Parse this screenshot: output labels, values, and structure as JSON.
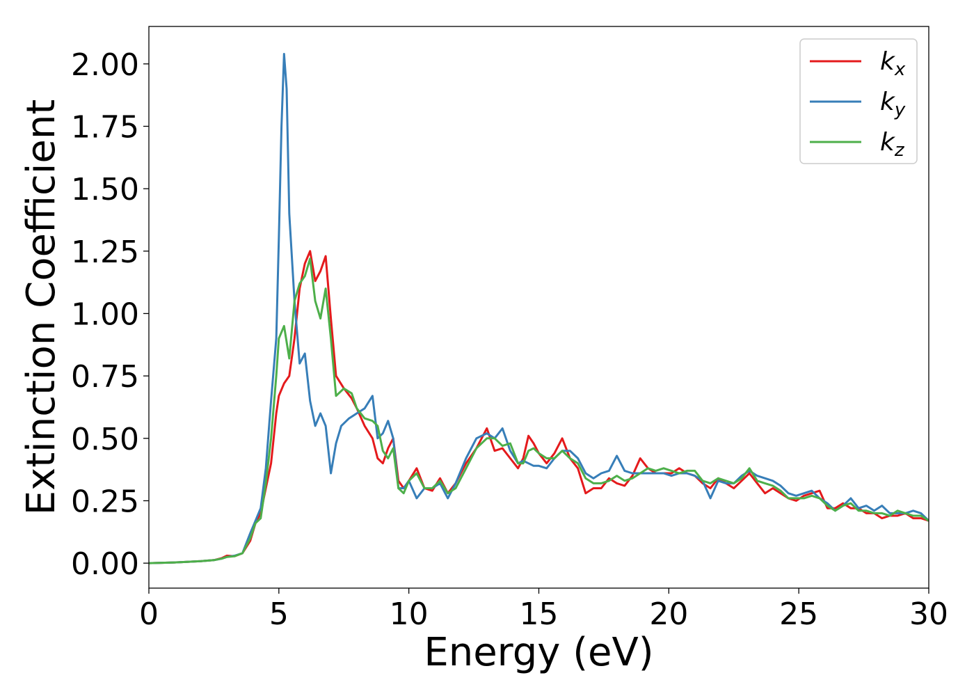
{
  "chart_data": {
    "type": "line",
    "title": "",
    "xlabel": "Energy (eV)",
    "ylabel": "Extinction Coefficient",
    "xlim": [
      0,
      30
    ],
    "ylim": [
      -0.1,
      2.15
    ],
    "xticks": [
      0,
      5,
      10,
      15,
      20,
      25,
      30
    ],
    "yticks": [
      0.0,
      0.25,
      0.5,
      0.75,
      1.0,
      1.25,
      1.5,
      1.75,
      2.0
    ],
    "ytick_labels": [
      "0.00",
      "0.25",
      "0.50",
      "0.75",
      "1.00",
      "1.25",
      "1.50",
      "1.75",
      "2.00"
    ],
    "grid": false,
    "legend_position": "top-right",
    "series": [
      {
        "name": "k",
        "subscript": "x",
        "color": "#e41a1c",
        "x": [
          0,
          1,
          2,
          2.5,
          2.8,
          3.0,
          3.3,
          3.6,
          3.9,
          4.1,
          4.3,
          4.5,
          4.7,
          4.9,
          5.0,
          5.2,
          5.4,
          5.6,
          5.8,
          6.0,
          6.2,
          6.4,
          6.6,
          6.8,
          7.0,
          7.2,
          7.5,
          7.8,
          8.0,
          8.3,
          8.6,
          8.8,
          9.0,
          9.2,
          9.4,
          9.6,
          9.8,
          10.0,
          10.3,
          10.6,
          10.9,
          11.2,
          11.5,
          11.8,
          12.2,
          12.6,
          13.0,
          13.3,
          13.6,
          13.9,
          14.2,
          14.4,
          14.6,
          14.8,
          15.0,
          15.3,
          15.6,
          15.9,
          16.2,
          16.5,
          16.8,
          17.1,
          17.4,
          17.7,
          18.0,
          18.3,
          18.6,
          18.9,
          19.2,
          19.5,
          19.8,
          20.1,
          20.4,
          20.7,
          21.0,
          21.3,
          21.6,
          21.9,
          22.2,
          22.5,
          22.8,
          23.1,
          23.4,
          23.7,
          24.0,
          24.3,
          24.6,
          24.9,
          25.2,
          25.5,
          25.8,
          26.1,
          26.4,
          26.7,
          27.0,
          27.3,
          27.6,
          27.9,
          28.2,
          28.5,
          28.8,
          29.1,
          29.4,
          29.7,
          30.0
        ],
        "y": [
          0,
          0.003,
          0.008,
          0.012,
          0.02,
          0.03,
          0.028,
          0.04,
          0.09,
          0.16,
          0.2,
          0.3,
          0.4,
          0.6,
          0.67,
          0.72,
          0.75,
          0.9,
          1.1,
          1.2,
          1.25,
          1.13,
          1.17,
          1.23,
          0.98,
          0.75,
          0.7,
          0.66,
          0.62,
          0.55,
          0.5,
          0.42,
          0.4,
          0.46,
          0.5,
          0.33,
          0.3,
          0.33,
          0.38,
          0.3,
          0.29,
          0.34,
          0.28,
          0.32,
          0.4,
          0.46,
          0.54,
          0.45,
          0.46,
          0.42,
          0.38,
          0.42,
          0.51,
          0.48,
          0.44,
          0.4,
          0.44,
          0.5,
          0.42,
          0.38,
          0.28,
          0.3,
          0.3,
          0.34,
          0.32,
          0.31,
          0.35,
          0.42,
          0.38,
          0.36,
          0.36,
          0.36,
          0.38,
          0.36,
          0.35,
          0.32,
          0.3,
          0.34,
          0.32,
          0.3,
          0.33,
          0.36,
          0.32,
          0.28,
          0.3,
          0.28,
          0.26,
          0.25,
          0.27,
          0.28,
          0.29,
          0.22,
          0.22,
          0.24,
          0.22,
          0.22,
          0.2,
          0.2,
          0.18,
          0.19,
          0.19,
          0.2,
          0.18,
          0.18,
          0.17
        ]
      },
      {
        "name": "k",
        "subscript": "y",
        "color": "#377eb8",
        "x": [
          0,
          1,
          2,
          2.5,
          2.8,
          3.0,
          3.3,
          3.6,
          3.9,
          4.1,
          4.3,
          4.5,
          4.7,
          4.9,
          5.0,
          5.1,
          5.2,
          5.3,
          5.4,
          5.6,
          5.8,
          6.0,
          6.2,
          6.4,
          6.6,
          6.8,
          7.0,
          7.2,
          7.4,
          7.7,
          8.0,
          8.3,
          8.6,
          8.8,
          9.0,
          9.2,
          9.4,
          9.6,
          9.8,
          10.0,
          10.3,
          10.6,
          10.9,
          11.2,
          11.5,
          11.8,
          12.2,
          12.6,
          13.0,
          13.3,
          13.6,
          13.9,
          14.2,
          14.4,
          14.6,
          14.8,
          15.0,
          15.3,
          15.6,
          15.9,
          16.2,
          16.5,
          16.8,
          17.1,
          17.4,
          17.7,
          18.0,
          18.3,
          18.6,
          18.9,
          19.2,
          19.5,
          19.8,
          20.1,
          20.4,
          20.7,
          21.0,
          21.3,
          21.6,
          21.9,
          22.2,
          22.5,
          22.8,
          23.1,
          23.4,
          23.7,
          24.0,
          24.3,
          24.6,
          24.9,
          25.2,
          25.5,
          25.8,
          26.1,
          26.4,
          26.7,
          27.0,
          27.3,
          27.6,
          27.9,
          28.2,
          28.5,
          28.8,
          29.1,
          29.4,
          29.7,
          30.0
        ],
        "y": [
          0,
          0.003,
          0.008,
          0.012,
          0.018,
          0.025,
          0.03,
          0.04,
          0.12,
          0.17,
          0.22,
          0.38,
          0.65,
          0.9,
          1.3,
          1.75,
          2.04,
          1.9,
          1.4,
          1.05,
          0.8,
          0.84,
          0.65,
          0.55,
          0.6,
          0.55,
          0.36,
          0.48,
          0.55,
          0.58,
          0.6,
          0.62,
          0.67,
          0.5,
          0.52,
          0.57,
          0.5,
          0.3,
          0.3,
          0.33,
          0.26,
          0.3,
          0.3,
          0.32,
          0.26,
          0.32,
          0.42,
          0.5,
          0.52,
          0.5,
          0.54,
          0.45,
          0.4,
          0.41,
          0.4,
          0.39,
          0.39,
          0.38,
          0.42,
          0.45,
          0.45,
          0.42,
          0.36,
          0.34,
          0.36,
          0.37,
          0.43,
          0.37,
          0.36,
          0.36,
          0.36,
          0.36,
          0.36,
          0.35,
          0.36,
          0.36,
          0.35,
          0.33,
          0.26,
          0.33,
          0.32,
          0.32,
          0.35,
          0.37,
          0.35,
          0.34,
          0.33,
          0.31,
          0.28,
          0.27,
          0.28,
          0.29,
          0.26,
          0.24,
          0.21,
          0.23,
          0.26,
          0.22,
          0.23,
          0.21,
          0.23,
          0.2,
          0.2,
          0.2,
          0.21,
          0.2,
          0.17
        ]
      },
      {
        "name": "k",
        "subscript": "z",
        "color": "#4daf4a",
        "x": [
          0,
          1,
          2,
          2.5,
          2.8,
          3.0,
          3.3,
          3.6,
          3.9,
          4.1,
          4.3,
          4.5,
          4.7,
          4.9,
          5.0,
          5.2,
          5.4,
          5.6,
          5.8,
          6.0,
          6.2,
          6.4,
          6.6,
          6.8,
          7.0,
          7.2,
          7.5,
          7.8,
          8.0,
          8.3,
          8.6,
          8.8,
          9.0,
          9.2,
          9.4,
          9.6,
          9.8,
          10.0,
          10.3,
          10.6,
          10.9,
          11.2,
          11.5,
          11.8,
          12.2,
          12.6,
          13.0,
          13.3,
          13.6,
          13.9,
          14.2,
          14.4,
          14.6,
          14.8,
          15.0,
          15.3,
          15.6,
          15.9,
          16.2,
          16.5,
          16.8,
          17.1,
          17.4,
          17.7,
          18.0,
          18.3,
          18.6,
          18.9,
          19.2,
          19.5,
          19.8,
          20.1,
          20.4,
          20.7,
          21.0,
          21.3,
          21.6,
          21.9,
          22.2,
          22.5,
          22.8,
          23.1,
          23.4,
          23.7,
          24.0,
          24.3,
          24.6,
          24.9,
          25.2,
          25.5,
          25.8,
          26.1,
          26.4,
          26.7,
          27.0,
          27.3,
          27.6,
          27.9,
          28.2,
          28.5,
          28.8,
          29.1,
          29.4,
          29.7,
          30.0
        ],
        "y": [
          0,
          0.003,
          0.008,
          0.012,
          0.018,
          0.025,
          0.028,
          0.04,
          0.1,
          0.16,
          0.18,
          0.32,
          0.5,
          0.75,
          0.9,
          0.95,
          0.82,
          1.05,
          1.12,
          1.15,
          1.22,
          1.05,
          0.98,
          1.1,
          0.9,
          0.67,
          0.7,
          0.68,
          0.62,
          0.58,
          0.57,
          0.55,
          0.45,
          0.42,
          0.46,
          0.3,
          0.28,
          0.33,
          0.36,
          0.3,
          0.3,
          0.33,
          0.28,
          0.3,
          0.38,
          0.46,
          0.5,
          0.5,
          0.47,
          0.48,
          0.4,
          0.4,
          0.45,
          0.46,
          0.44,
          0.42,
          0.42,
          0.45,
          0.42,
          0.4,
          0.34,
          0.32,
          0.32,
          0.33,
          0.35,
          0.33,
          0.34,
          0.36,
          0.38,
          0.37,
          0.38,
          0.37,
          0.36,
          0.37,
          0.37,
          0.33,
          0.32,
          0.34,
          0.33,
          0.32,
          0.34,
          0.38,
          0.33,
          0.32,
          0.31,
          0.29,
          0.26,
          0.26,
          0.26,
          0.27,
          0.26,
          0.23,
          0.21,
          0.23,
          0.24,
          0.21,
          0.21,
          0.2,
          0.2,
          0.19,
          0.21,
          0.2,
          0.19,
          0.19,
          0.17
        ]
      }
    ]
  }
}
